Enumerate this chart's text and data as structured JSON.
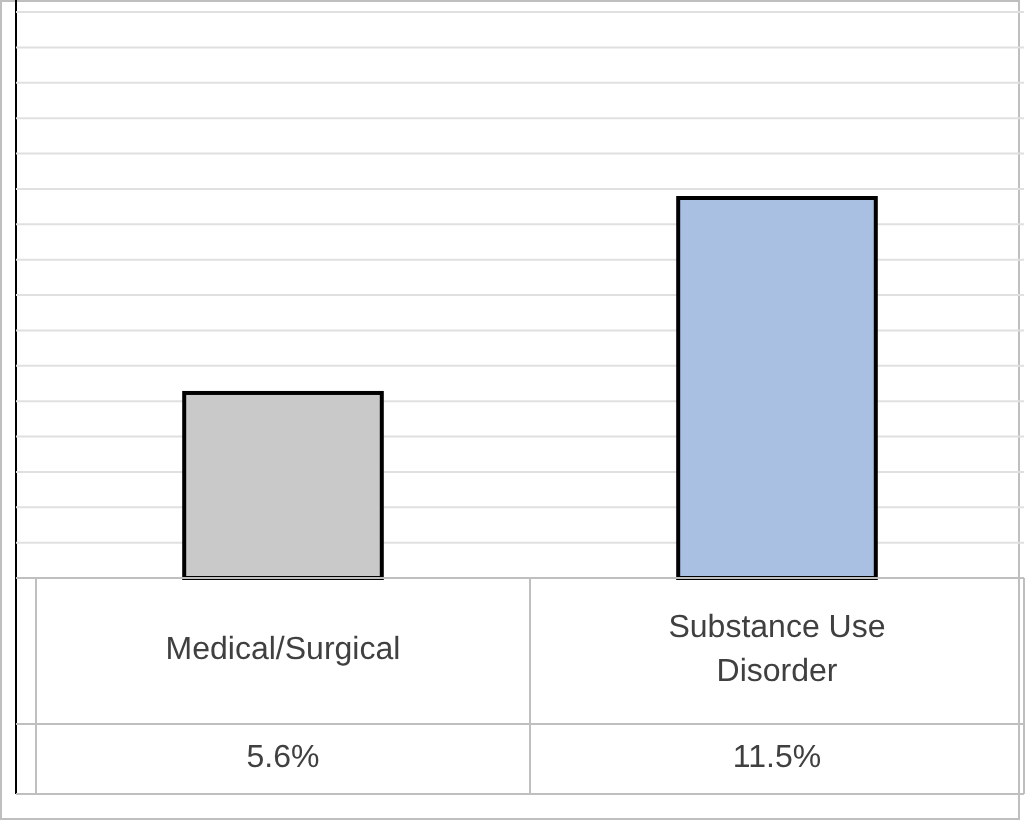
{
  "chart_data": {
    "type": "bar",
    "categories": [
      "Medical/Surgical",
      "Substance Use Disorder"
    ],
    "values": [
      5.6,
      11.5
    ],
    "value_labels": [
      "5.6%",
      "11.5%"
    ],
    "colors": [
      "#c9c9c9",
      "#a9c0e2"
    ],
    "grid": true
  }
}
